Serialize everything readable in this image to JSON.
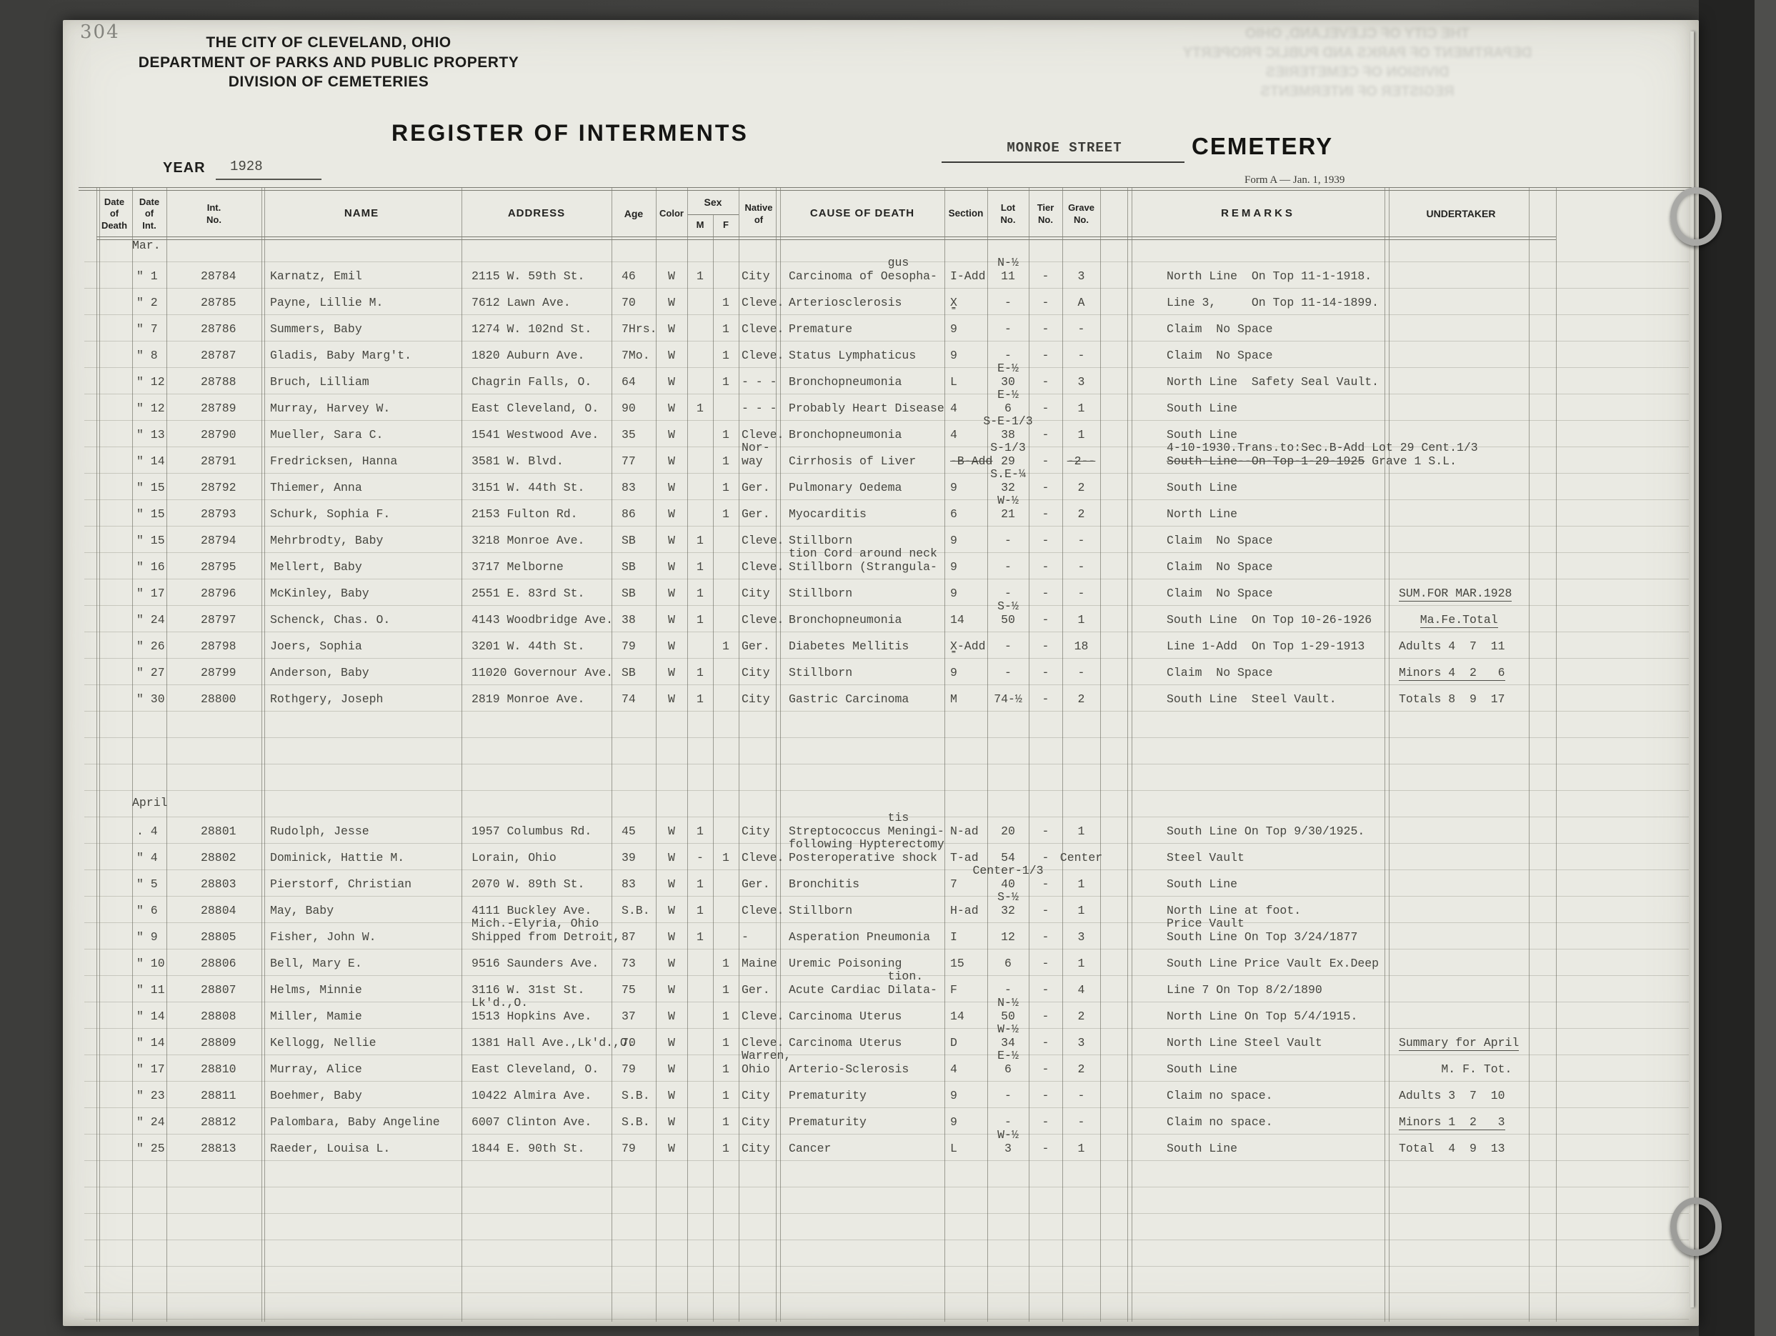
{
  "page": {
    "page_number": "304",
    "header_lines": [
      "THE CITY OF CLEVELAND, OHIO",
      "DEPARTMENT OF PARKS AND PUBLIC PROPERTY",
      "DIVISION OF CEMETERIES"
    ],
    "title": "REGISTER OF INTERMENTS",
    "cemetery_name": "MONROE STREET",
    "cemetery_label": "CEMETERY",
    "year_label": "YEAR",
    "year_value": "1928",
    "form_note": "Form A — Jan. 1, 1939"
  },
  "table": {
    "headers": {
      "dod": "Date\nof\nDeath",
      "doi": "Date\nof\nInt.",
      "no": "Int.\nNo.",
      "name": "NAME",
      "addr": "ADDRESS",
      "age": "Age",
      "color": "Color",
      "sex": "Sex",
      "m": "M",
      "f": "F",
      "native": "Native\nof",
      "cause": "CAUSE OF DEATH",
      "section": "Section",
      "lot": "Lot\nNo.",
      "tier": "Tier\nNo.",
      "grave": "Grave\nNo.",
      "remarks": "REMARKS",
      "und": "UNDERTAKER"
    },
    "sections": [
      {
        "month": "Mar.",
        "rows": [
          {
            "doi": "\" 1",
            "no": "28784",
            "name": "Karnatz, Emil",
            "addr": "2115 W. 59th St.",
            "age": "46",
            "color": "W",
            "m": "1",
            "native": "City",
            "cause": "              gus\nCarcinoma of Oesopha-",
            "section": "I-Add",
            "lot": "N-½\n11",
            "tier": "-",
            "grave": "3",
            "remarks": "North Line  On Top 11-1-1918."
          },
          {
            "doi": "\" 2",
            "no": "28785",
            "name": "Payne, Lillie M.",
            "addr": "7612 Lawn Ave.",
            "age": "70",
            "color": "W",
            "f": "1",
            "native": "Cleve.",
            "cause": "Arteriosclerosis",
            "section": "X̳",
            "lot": "-",
            "tier": "-",
            "grave": "A",
            "remarks": "Line 3,     On Top 11-14-1899."
          },
          {
            "doi": "\" 7",
            "no": "28786",
            "name": "Summers, Baby",
            "addr": "1274 W. 102nd St.",
            "age": "7Hrs.",
            "color": "W",
            "f": "1",
            "native": "Cleve.",
            "cause": "Premature",
            "section": "9",
            "lot": "-",
            "tier": "-",
            "grave": "-",
            "remarks": "Claim  No Space"
          },
          {
            "doi": "\" 8",
            "no": "28787",
            "name": "Gladis, Baby Marg't.",
            "addr": "1820 Auburn Ave.",
            "age": "7Mo.",
            "color": "W",
            "f": "1",
            "native": "Cleve.",
            "cause": "Status Lymphaticus",
            "section": "9",
            "lot": "-",
            "tier": "-",
            "grave": "-",
            "remarks": "Claim  No Space"
          },
          {
            "doi": "\" 12",
            "no": "28788",
            "name": "Bruch, Lilliam",
            "addr": "Chagrin Falls, O.",
            "age": "64",
            "color": "W",
            "f": "1",
            "native": "- - -",
            "cause": "Bronchopneumonia",
            "section": "L",
            "lot": "E-½\n30",
            "tier": "-",
            "grave": "3",
            "remarks": "North Line  Safety Seal Vault."
          },
          {
            "doi": "\" 12",
            "no": "28789",
            "name": "Murray, Harvey W.",
            "addr": "East Cleveland, O.",
            "age": "90",
            "color": "W",
            "m": "1",
            "native": "- - -",
            "cause": "Probably Heart Disease",
            "section": "4",
            "lot": "E-½\n6",
            "tier": "-",
            "grave": "1",
            "remarks": "South Line"
          },
          {
            "doi": "\" 13",
            "no": "28790",
            "name": "Mueller, Sara C.",
            "addr": "1541 Westwood Ave.",
            "age": "35",
            "color": "W",
            "f": "1",
            "native": "Cleve.",
            "cause": "Bronchopneumonia",
            "section": "4",
            "lot": "S-E-1/3\n38",
            "tier": "-",
            "grave": "1",
            "remarks": "South Line"
          },
          {
            "doi": "\" 14",
            "no": "28791",
            "name": "Fredricksen, Hanna",
            "addr": "3581 W. Blvd.",
            "age": "77",
            "color": "W",
            "f": "1",
            "native": "Nor-\nway",
            "cause": "Cirrhosis of Liver",
            "section": "~~-B-Add~~",
            "lot": "S-1/3\n29",
            "tier": "-",
            "grave": "~~-2--~~",
            "remarks": "4-10-1930.Trans.to:Sec.B-Add Lot 29 Cent.1/3\n~~South-Line--On-Top-1-29-1925~~ Grave 1 S.L."
          },
          {
            "doi": "\" 15",
            "no": "28792",
            "name": "Thiemer, Anna",
            "addr": "3151 W. 44th St.",
            "age": "83",
            "color": "W",
            "f": "1",
            "native": "Ger.",
            "cause": "Pulmonary Oedema",
            "section": "9",
            "lot": "S.E-¼\n32",
            "tier": "-",
            "grave": "2",
            "remarks": "South Line"
          },
          {
            "doi": "\" 15",
            "no": "28793",
            "name": "Schurk, Sophia F.",
            "addr": "2153 Fulton Rd.",
            "age": "86",
            "color": "W",
            "f": "1",
            "native": "Ger.",
            "cause": "Myocarditis",
            "section": "6",
            "lot": "W-½\n21",
            "tier": "-",
            "grave": "2",
            "remarks": "North Line"
          },
          {
            "doi": "\" 15",
            "no": "28794",
            "name": "Mehrbrodty, Baby",
            "addr": "3218 Monroe Ave.",
            "age": "SB",
            "color": "W",
            "m": "1",
            "native": "Cleve.",
            "cause": "Stillborn",
            "section": "9",
            "lot": "-",
            "tier": "-",
            "grave": "-",
            "remarks": "Claim  No Space"
          },
          {
            "doi": "\" 16",
            "no": "28795",
            "name": "Mellert, Baby",
            "addr": "3717 Melborne",
            "age": "SB",
            "color": "W",
            "m": "1",
            "native": "Cleve.",
            "cause": "tion Cord around neck\nStillborn (Strangula-",
            "section": "9",
            "lot": "-",
            "tier": "-",
            "grave": "-",
            "remarks": "Claim  No Space"
          },
          {
            "doi": "\" 17",
            "no": "28796",
            "name": "McKinley, Baby",
            "addr": "2551 E. 83rd St.",
            "age": "SB",
            "color": "W",
            "m": "1",
            "native": "City",
            "cause": "Stillborn",
            "section": "9",
            "lot": "-",
            "tier": "-",
            "grave": "-",
            "remarks": "Claim  No Space",
            "und": "__SUM.FOR MAR.1928__"
          },
          {
            "doi": "\" 24",
            "no": "28797",
            "name": "Schenck, Chas. O.",
            "addr": "4143 Woodbridge Ave.",
            "age": "38",
            "color": "W",
            "m": "1",
            "native": "Cleve.",
            "cause": "Bronchopneumonia",
            "section": "14",
            "lot": "S-½\n50",
            "tier": "-",
            "grave": "1",
            "remarks": "South Line  On Top 10-26-1926",
            "und": "   __Ma.Fe.Total__"
          },
          {
            "doi": "\" 26",
            "no": "28798",
            "name": "Joers, Sophia",
            "addr": "3201 W. 44th St.",
            "age": "79",
            "color": "W",
            "f": "1",
            "native": "Ger.",
            "cause": "Diabetes Mellitis",
            "section": "X̳-Add",
            "lot": "-",
            "tier": "-",
            "grave": "18",
            "remarks": "Line 1-Add  On Top 1-29-1913",
            "und": "Adults 4  7  11"
          },
          {
            "doi": "\" 27",
            "no": "28799",
            "name": "Anderson, Baby",
            "addr": "11020 Governour Ave.",
            "age": "SB",
            "color": "W",
            "m": "1",
            "native": "City",
            "cause": "Stillborn",
            "section": "9",
            "lot": "-",
            "tier": "-",
            "grave": "-",
            "remarks": "Claim  No Space",
            "und": "__Minors 4  2   6__"
          },
          {
            "doi": "\" 30",
            "no": "28800",
            "name": "Rothgery, Joseph",
            "addr": "2819 Monroe Ave.",
            "age": "74",
            "color": "W",
            "m": "1",
            "native": "City",
            "cause": "Gastric Carcinoma",
            "section": "M",
            "lot": "74-½",
            "tier": "-",
            "grave": "2",
            "remarks": "South Line  Steel Vault.",
            "und": "Totals 8  9  17"
          }
        ]
      },
      {
        "month": "April",
        "rows": [
          {
            "doi": ". 4",
            "no": "28801",
            "name": "Rudolph, Jesse",
            "addr": "1957 Columbus Rd.",
            "age": "45",
            "color": "W",
            "m": "1",
            "native": "City",
            "cause": "              tis\nStreptococcus Meningi-",
            "section": "N-ad",
            "lot": "20",
            "tier": "-",
            "grave": "1",
            "remarks": "South Line On Top 9/30/1925."
          },
          {
            "doi": "\" 4",
            "no": "28802",
            "name": "Dominick, Hattie M.",
            "addr": "Lorain, Ohio",
            "age": "39",
            "color": "W",
            "m": "-",
            "f": "1",
            "native": "Cleve.",
            "cause": "following Hypterectomy\nPosteroperative shock",
            "section": "T-ad",
            "lot": "54",
            "tier": "-",
            "grave": "Center",
            "remarks": "Steel Vault"
          },
          {
            "doi": "\" 5",
            "no": "28803",
            "name": "Pierstorf, Christian",
            "addr": "2070 W. 89th St.",
            "age": "83",
            "color": "W",
            "m": "1",
            "native": "Ger.",
            "cause": "Bronchitis",
            "section": "7",
            "lot": "Center-1/3\n40",
            "tier": "-",
            "grave": "1",
            "remarks": "South Line"
          },
          {
            "doi": "\" 6",
            "no": "28804",
            "name": "May, Baby",
            "addr": "4111 Buckley Ave.",
            "age": "S.B.",
            "color": "W",
            "m": "1",
            "native": "Cleve.",
            "cause": "Stillborn",
            "section": "H-ad",
            "lot": "S-½\n32",
            "tier": "-",
            "grave": "1",
            "remarks": "North Line at foot."
          },
          {
            "doi": "\" 9",
            "no": "28805",
            "name": "Fisher, John W.",
            "addr": "Mich.-Elyria, Ohio\nShipped from Detroit,",
            "age": "87",
            "color": "W",
            "m": "1",
            "native": "-",
            "cause": "Asperation Pneumonia",
            "section": "I",
            "lot": "12",
            "tier": "-",
            "grave": "3",
            "remarks": "Price Vault\nSouth Line On Top 3/24/1877"
          },
          {
            "doi": "\" 10",
            "no": "28806",
            "name": "Bell, Mary E.",
            "addr": "9516 Saunders Ave.",
            "age": "73",
            "color": "W",
            "f": "1",
            "native": "Maine",
            "cause": "Uremic Poisoning",
            "section": "15",
            "lot": "6",
            "tier": "-",
            "grave": "1",
            "remarks": "South Line Price Vault Ex.Deep"
          },
          {
            "doi": "\" 11",
            "no": "28807",
            "name": "Helms, Minnie",
            "addr": "3116 W. 31st St.",
            "age": "75",
            "color": "W",
            "f": "1",
            "native": "Ger.",
            "cause": "              tion.\nAcute Cardiac Dilata-",
            "section": "F",
            "lot": "-",
            "tier": "-",
            "grave": "4",
            "remarks": "Line 7 On Top 8/2/1890"
          },
          {
            "doi": "\" 14",
            "no": "28808",
            "name": "Miller, Mamie",
            "addr": "Lk'd.,O.\n1513 Hopkins Ave.",
            "age": "37",
            "color": "W",
            "f": "1",
            "native": "Cleve.",
            "cause": "Carcinoma Uterus",
            "section": "14",
            "lot": "N-½\n50",
            "tier": "-",
            "grave": "2",
            "remarks": "North Line On Top 5/4/1915."
          },
          {
            "doi": "\" 14",
            "no": "28809",
            "name": "Kellogg, Nellie",
            "addr": "1381 Hall Ave.,Lk'd.,O.",
            "age": "70",
            "color": "W",
            "f": "1",
            "native": "Cleve.",
            "cause": "Carcinoma Uterus",
            "section": "D",
            "lot": "W-½\n34",
            "tier": "-",
            "grave": "3",
            "remarks": "North Line Steel Vault",
            "und": "__Summary for April__"
          },
          {
            "doi": "\" 17",
            "no": "28810",
            "name": "Murray, Alice",
            "addr": "East Cleveland, O.",
            "age": "79",
            "color": "W",
            "f": "1",
            "native": "Warren,\nOhio",
            "cause": "Arterio-Sclerosis",
            "section": "4",
            "lot": "E-½\n6",
            "tier": "-",
            "grave": "2",
            "remarks": "South Line",
            "und": "      M. F. Tot."
          },
          {
            "doi": "\" 23",
            "no": "28811",
            "name": "Boehmer, Baby",
            "addr": "10422 Almira Ave.",
            "age": "S.B.",
            "color": "W",
            "f": "1",
            "native": "City",
            "cause": "Prematurity",
            "section": "9",
            "lot": "-",
            "tier": "-",
            "grave": "-",
            "remarks": "Claim no space.",
            "und": "Adults 3  7  10"
          },
          {
            "doi": "\" 24",
            "no": "28812",
            "name": "Palombara, Baby Angeline",
            "addr": "6007 Clinton Ave.",
            "age": "S.B.",
            "color": "W",
            "f": "1",
            "native": "City",
            "cause": "Prematurity",
            "section": "9",
            "lot": "-",
            "tier": "-",
            "grave": "-",
            "remarks": "Claim no space.",
            "und": "__Minors 1  2   3__"
          },
          {
            "doi": "\" 25",
            "no": "28813",
            "name": "Raeder, Louisa L.",
            "addr": "1844 E. 90th St.",
            "age": "79",
            "color": "W",
            "f": "1",
            "native": "City",
            "cause": "Cancer",
            "section": "L",
            "lot": "W-½\n3",
            "tier": "-",
            "grave": "1",
            "remarks": "South Line",
            "und": "Total  4  9  13"
          }
        ]
      }
    ]
  }
}
